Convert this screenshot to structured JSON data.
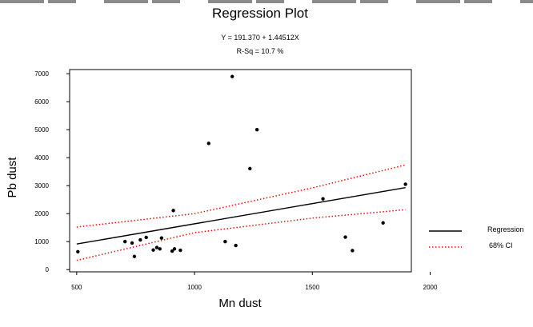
{
  "chart_data": {
    "type": "scatter",
    "title": "Regression Plot",
    "equation": "Y = 191.370 + 1.44512X",
    "rsq": "R-Sq = 10.7 %",
    "xlabel": "Mn dust",
    "ylabel": "Pb dust",
    "xlim": [
      470,
      1920
    ],
    "ylim": [
      -80,
      7150
    ],
    "xticks": [
      500,
      1000,
      1500,
      2000
    ],
    "yticks": [
      0,
      1000,
      2000,
      3000,
      4000,
      5000,
      6000,
      7000
    ],
    "points": [
      {
        "x": 505,
        "y": 640
      },
      {
        "x": 705,
        "y": 1000
      },
      {
        "x": 735,
        "y": 950
      },
      {
        "x": 745,
        "y": 470
      },
      {
        "x": 770,
        "y": 1060
      },
      {
        "x": 795,
        "y": 1150
      },
      {
        "x": 825,
        "y": 700
      },
      {
        "x": 840,
        "y": 790
      },
      {
        "x": 853,
        "y": 740
      },
      {
        "x": 860,
        "y": 1130
      },
      {
        "x": 905,
        "y": 660
      },
      {
        "x": 910,
        "y": 2110
      },
      {
        "x": 915,
        "y": 740
      },
      {
        "x": 940,
        "y": 690
      },
      {
        "x": 1060,
        "y": 4510
      },
      {
        "x": 1130,
        "y": 1000
      },
      {
        "x": 1160,
        "y": 6900
      },
      {
        "x": 1175,
        "y": 860
      },
      {
        "x": 1235,
        "y": 3610
      },
      {
        "x": 1265,
        "y": 5000
      },
      {
        "x": 1545,
        "y": 2530
      },
      {
        "x": 1640,
        "y": 1160
      },
      {
        "x": 1670,
        "y": 680
      },
      {
        "x": 1800,
        "y": 1670
      },
      {
        "x": 1895,
        "y": 3050
      }
    ],
    "regression": {
      "intercept": 191.37,
      "slope": 1.44512,
      "x_range": [
        500,
        1895
      ]
    },
    "ci_lower": [
      {
        "x": 500,
        "y": 330
      },
      {
        "x": 1000,
        "y": 1320
      },
      {
        "x": 1500,
        "y": 1840
      },
      {
        "x": 1895,
        "y": 2140
      }
    ],
    "ci_upper": [
      {
        "x": 500,
        "y": 1520
      },
      {
        "x": 1000,
        "y": 2000
      },
      {
        "x": 1500,
        "y": 2920
      },
      {
        "x": 1895,
        "y": 3740
      }
    ],
    "legend": [
      {
        "label": "Regression",
        "style": "solid",
        "color": "#000000"
      },
      {
        "label": "68% CI",
        "style": "dotted",
        "color": "#ff0000"
      }
    ],
    "legend_position": "right",
    "grid": false
  }
}
